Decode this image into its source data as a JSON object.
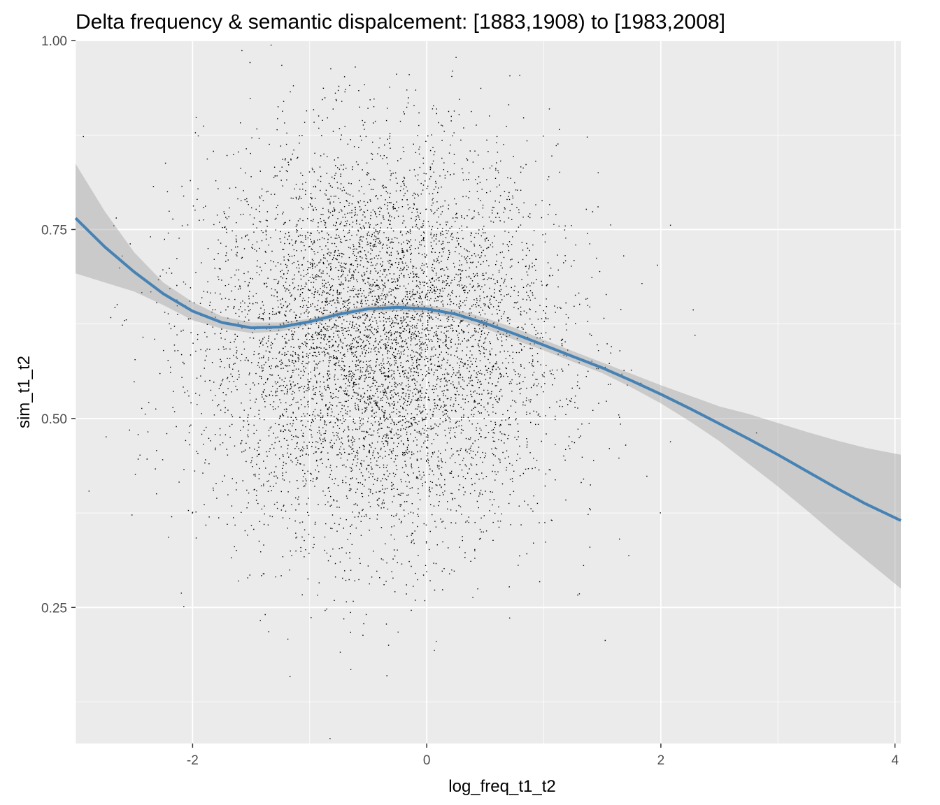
{
  "chart_data": {
    "type": "scatter",
    "title": "Delta frequency & semantic dispalcement: [1883,1908) to [1983,2008]",
    "xlabel": "log_freq_t1_t2",
    "ylabel": "sim_t1_t2",
    "xlim": [
      -3.0,
      4.05
    ],
    "ylim": [
      0.07,
      1.0
    ],
    "x_ticks": [
      -2,
      0,
      2,
      4
    ],
    "x_tick_labels": [
      "-2",
      "0",
      "2",
      "4"
    ],
    "y_ticks": [
      0.25,
      0.5,
      0.75,
      1.0
    ],
    "y_tick_labels": [
      "0.25",
      "0.50",
      "0.75",
      "1.00"
    ],
    "grid": true,
    "panel_background": "#EBEBEB",
    "point_color": "#000000",
    "smooth_color": "#4682B4",
    "ribbon_color": "#999999",
    "scatter_summary": {
      "approx_points": 9000,
      "x_center": -0.4,
      "x_sd": 0.75,
      "y_center": 0.6,
      "y_sd": 0.13
    },
    "smooth_line": {
      "x": [
        -3.0,
        -2.75,
        -2.5,
        -2.25,
        -2.0,
        -1.75,
        -1.5,
        -1.25,
        -1.0,
        -0.75,
        -0.5,
        -0.25,
        0.0,
        0.25,
        0.5,
        0.75,
        1.0,
        1.25,
        1.5,
        1.75,
        2.0,
        2.25,
        2.5,
        2.75,
        3.0,
        3.25,
        3.5,
        3.75,
        4.05
      ],
      "y": [
        0.765,
        0.727,
        0.694,
        0.665,
        0.642,
        0.627,
        0.62,
        0.621,
        0.628,
        0.638,
        0.645,
        0.647,
        0.645,
        0.638,
        0.626,
        0.612,
        0.597,
        0.582,
        0.567,
        0.55,
        0.532,
        0.513,
        0.493,
        0.473,
        0.452,
        0.43,
        0.408,
        0.387,
        0.365
      ],
      "lower": [
        0.692,
        0.68,
        0.668,
        0.65,
        0.63,
        0.619,
        0.613,
        0.615,
        0.624,
        0.634,
        0.641,
        0.642,
        0.64,
        0.632,
        0.619,
        0.604,
        0.59,
        0.575,
        0.56,
        0.541,
        0.52,
        0.496,
        0.47,
        0.44,
        0.41,
        0.378,
        0.345,
        0.313,
        0.275
      ],
      "upper": [
        0.837,
        0.774,
        0.72,
        0.68,
        0.654,
        0.635,
        0.627,
        0.627,
        0.632,
        0.642,
        0.649,
        0.652,
        0.65,
        0.644,
        0.633,
        0.62,
        0.604,
        0.589,
        0.574,
        0.559,
        0.544,
        0.53,
        0.516,
        0.506,
        0.494,
        0.482,
        0.471,
        0.461,
        0.452
      ]
    }
  }
}
